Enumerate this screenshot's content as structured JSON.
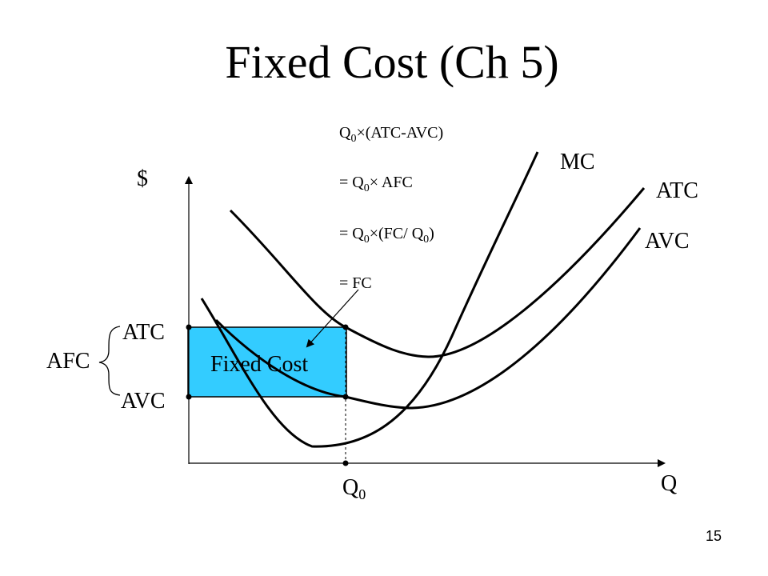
{
  "slide": {
    "title": "Fixed Cost (Ch 5)",
    "page_number": "15"
  },
  "axes": {
    "y_label": "$",
    "x_label": "Q",
    "q0_main": "Q",
    "q0_sub": "0"
  },
  "curves": {
    "mc_label": "MC",
    "atc_label": "ATC",
    "avc_label": "AVC"
  },
  "y_axis_marks": {
    "atc": "ATC",
    "avc": "AVC",
    "afc": "AFC"
  },
  "box": {
    "label": "Fixed Cost",
    "fill": "#33CCFF"
  },
  "equations": {
    "q": "Q",
    "zero": "0",
    "times": "×",
    "line1_rest": "(ATC-AVC)",
    "eq_prefix": "= ",
    "line2_rest": " AFC",
    "line3_open": "(FC/ ",
    "line3_close": ")",
    "line4": "= FC"
  }
}
